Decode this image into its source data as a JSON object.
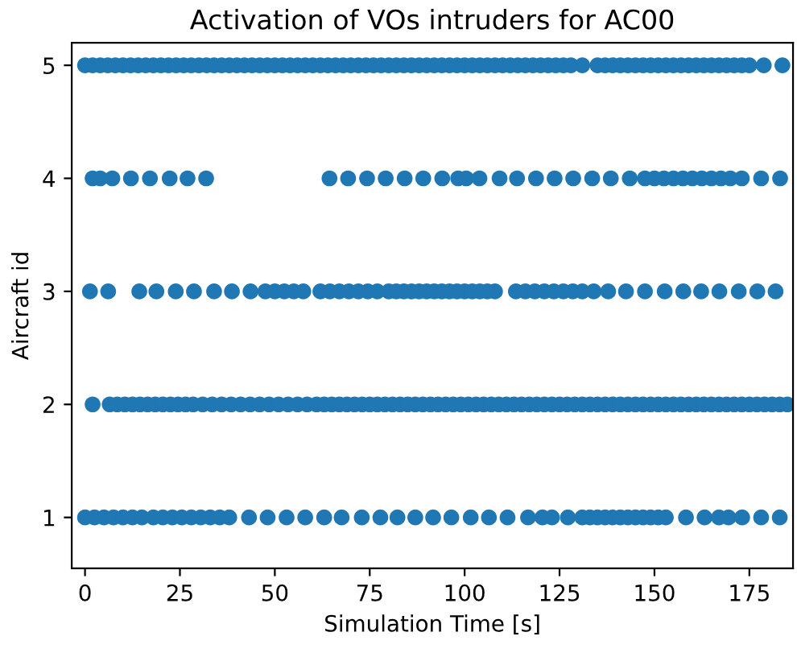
{
  "chart_data": {
    "type": "scatter",
    "title": "Activation of VOs intruders for AC00",
    "xlabel": "Simulation Time [s]",
    "ylabel": "Aircraft id",
    "xlim": [
      -3.5,
      186.5
    ],
    "ylim": [
      0.55,
      5.2
    ],
    "xticks": [
      0,
      25,
      50,
      75,
      100,
      125,
      150,
      175
    ],
    "yticks": [
      1,
      2,
      3,
      4,
      5
    ],
    "marker": "circle",
    "grid": false,
    "legend": false,
    "series": [
      {
        "color": "#1f77b4",
        "x": [
          0,
          2,
          4,
          6,
          8,
          10,
          12,
          14,
          16,
          18,
          20,
          22,
          24,
          26,
          28,
          30,
          32,
          34,
          36,
          38,
          40,
          42,
          44,
          46,
          48,
          50,
          52,
          54,
          56,
          58,
          60,
          62,
          64,
          66,
          68,
          70,
          72,
          74,
          76,
          78,
          80,
          82,
          84,
          86,
          88,
          90,
          92,
          94,
          96,
          98,
          100,
          102,
          104,
          106,
          108,
          110,
          112,
          114,
          116,
          118,
          120,
          122,
          124,
          126,
          128,
          131,
          135,
          137,
          139,
          141,
          143,
          145,
          147,
          149,
          151,
          153,
          155,
          157,
          159,
          161,
          163,
          165,
          167,
          169,
          171,
          173,
          175,
          178.8,
          183.7
        ],
        "values": [
          5,
          5,
          5,
          5,
          5,
          5,
          5,
          5,
          5,
          5,
          5,
          5,
          5,
          5,
          5,
          5,
          5,
          5,
          5,
          5,
          5,
          5,
          5,
          5,
          5,
          5,
          5,
          5,
          5,
          5,
          5,
          5,
          5,
          5,
          5,
          5,
          5,
          5,
          5,
          5,
          5,
          5,
          5,
          5,
          5,
          5,
          5,
          5,
          5,
          5,
          5,
          5,
          5,
          5,
          5,
          5,
          5,
          5,
          5,
          5,
          5,
          5,
          5,
          5,
          5,
          5,
          5,
          5,
          5,
          5,
          5,
          5,
          5,
          5,
          5,
          5,
          5,
          5,
          5,
          5,
          5,
          5,
          5,
          5,
          5,
          5,
          5,
          5,
          5
        ]
      },
      {
        "color": "#1f77b4",
        "x": [
          2,
          4,
          7.2,
          12.1,
          17.1,
          22.3,
          27,
          31.9,
          64.4,
          69.3,
          74.3,
          79.2,
          84.2,
          89.1,
          94.1,
          98.3,
          100.4,
          103.9,
          109.2,
          113.8,
          118.8,
          123.7,
          128.6,
          133.6,
          138.5,
          143.5,
          147.5,
          150,
          152.5,
          155,
          157.5,
          160,
          162.5,
          165,
          167.5,
          170,
          173,
          178.1,
          183.1
        ],
        "values": [
          4,
          4,
          4,
          4,
          4,
          4,
          4,
          4,
          4,
          4,
          4,
          4,
          4,
          4,
          4,
          4,
          4,
          4,
          4,
          4,
          4,
          4,
          4,
          4,
          4,
          4,
          4,
          4,
          4,
          4,
          4,
          4,
          4,
          4,
          4,
          4,
          4,
          4,
          4
        ]
      },
      {
        "color": "#1f77b4",
        "x": [
          1.3,
          6.1,
          14.3,
          18.8,
          23.9,
          28.7,
          34,
          38.7,
          43.6,
          47.5,
          50,
          52.5,
          55,
          57.5,
          62,
          64.5,
          67,
          69.5,
          72,
          74.5,
          77,
          80,
          82,
          84,
          86,
          88,
          90,
          92,
          94,
          96,
          98,
          100,
          102,
          104,
          106,
          108,
          113.5,
          116,
          118.5,
          121,
          123.5,
          126,
          128.5,
          131,
          134,
          137.8,
          142.5,
          147.5,
          152.7,
          157.6,
          162.3,
          167.1,
          172.2,
          177.1,
          181.9
        ],
        "values": [
          3,
          3,
          3,
          3,
          3,
          3,
          3,
          3,
          3,
          3,
          3,
          3,
          3,
          3,
          3,
          3,
          3,
          3,
          3,
          3,
          3,
          3,
          3,
          3,
          3,
          3,
          3,
          3,
          3,
          3,
          3,
          3,
          3,
          3,
          3,
          3,
          3,
          3,
          3,
          3,
          3,
          3,
          3,
          3,
          3,
          3,
          3,
          3,
          3,
          3,
          3,
          3,
          3,
          3,
          3
        ]
      },
      {
        "color": "#1f77b4",
        "x": [
          2,
          6.5,
          8.5,
          10.5,
          12.5,
          14.5,
          16.5,
          18.5,
          20.5,
          22.5,
          24.5,
          26.5,
          28.5,
          31,
          33.5,
          36,
          38.5,
          41,
          43.5,
          46,
          48.5,
          51,
          53.5,
          56,
          58.5,
          61,
          63,
          65,
          67,
          69,
          71,
          73,
          75,
          77,
          79,
          81,
          83,
          85,
          87,
          89,
          91,
          93,
          95,
          97,
          99,
          101,
          103,
          105,
          107,
          109,
          111,
          113,
          115,
          117,
          119,
          121,
          123,
          125,
          127,
          129,
          131,
          133,
          135,
          137,
          139,
          141,
          143,
          145,
          147,
          149,
          151,
          153,
          155,
          157,
          159,
          161,
          163,
          165,
          167,
          169,
          171,
          173,
          175,
          177,
          179,
          181,
          183,
          185
        ],
        "values": [
          2,
          2,
          2,
          2,
          2,
          2,
          2,
          2,
          2,
          2,
          2,
          2,
          2,
          2,
          2,
          2,
          2,
          2,
          2,
          2,
          2,
          2,
          2,
          2,
          2,
          2,
          2,
          2,
          2,
          2,
          2,
          2,
          2,
          2,
          2,
          2,
          2,
          2,
          2,
          2,
          2,
          2,
          2,
          2,
          2,
          2,
          2,
          2,
          2,
          2,
          2,
          2,
          2,
          2,
          2,
          2,
          2,
          2,
          2,
          2,
          2,
          2,
          2,
          2,
          2,
          2,
          2,
          2,
          2,
          2,
          2,
          2,
          2,
          2,
          2,
          2,
          2,
          2,
          2,
          2,
          2,
          2,
          2,
          2,
          2,
          2,
          2,
          2
        ]
      },
      {
        "color": "#1f77b4",
        "x": [
          0,
          2.5,
          5,
          7.5,
          10,
          12.5,
          15,
          18,
          20.5,
          23,
          25.5,
          28,
          30.5,
          33,
          35.5,
          38,
          43.2,
          48.1,
          53.1,
          58,
          63,
          67.6,
          72.9,
          77.8,
          82.3,
          87,
          91.7,
          96.5,
          101.6,
          106.4,
          111.3,
          116.7,
          120.5,
          123,
          127.2,
          131,
          133,
          135,
          137,
          139,
          141,
          143,
          145,
          147,
          149,
          151,
          153,
          158.3,
          163.2,
          167,
          169.5,
          173.1,
          178.1,
          183
        ],
        "values": [
          1,
          1,
          1,
          1,
          1,
          1,
          1,
          1,
          1,
          1,
          1,
          1,
          1,
          1,
          1,
          1,
          1,
          1,
          1,
          1,
          1,
          1,
          1,
          1,
          1,
          1,
          1,
          1,
          1,
          1,
          1,
          1,
          1,
          1,
          1,
          1,
          1,
          1,
          1,
          1,
          1,
          1,
          1,
          1,
          1,
          1,
          1,
          1,
          1,
          1,
          1,
          1,
          1,
          1
        ]
      }
    ]
  }
}
